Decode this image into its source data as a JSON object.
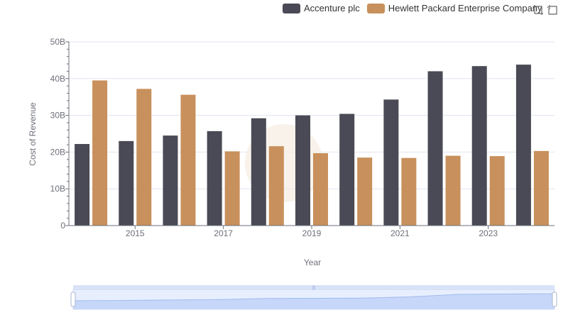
{
  "legend": {
    "items": [
      {
        "label": "Accenture plc",
        "color": "#4a4a56"
      },
      {
        "label": "Hewlett Packard Enterprise Company",
        "color": "#c8905c"
      }
    ]
  },
  "toolbox": {
    "icons": [
      "zoom-icon",
      "restore-icon"
    ]
  },
  "chart_data": {
    "type": "bar",
    "x": [
      2014,
      2015,
      2016,
      2017,
      2018,
      2019,
      2020,
      2021,
      2022,
      2023,
      2024
    ],
    "xtick_labels": [
      "2015",
      "2017",
      "2019",
      "2021",
      "2023"
    ],
    "ytick_labels": [
      "0",
      "10B",
      "20B",
      "30B",
      "40B",
      "50B"
    ],
    "ylim": [
      0,
      50000000000
    ],
    "xlabel": "Year",
    "ylabel": "Cost of Revenue",
    "series": [
      {
        "name": "Accenture plc",
        "color": "#4a4a56",
        "values": [
          22200000000,
          23000000000,
          24500000000,
          25700000000,
          29200000000,
          30000000000,
          30400000000,
          34300000000,
          42000000000,
          43400000000,
          43800000000
        ]
      },
      {
        "name": "Hewlett Packard Enterprise Company",
        "color": "#c8905c",
        "values": [
          39500000000,
          37200000000,
          35600000000,
          20200000000,
          21600000000,
          19700000000,
          18500000000,
          18400000000,
          19000000000,
          18900000000,
          20300000000
        ]
      }
    ],
    "grid": true,
    "legend_position": "top-right",
    "datazoom": {
      "start_percent": 0,
      "end_percent": 100
    }
  }
}
